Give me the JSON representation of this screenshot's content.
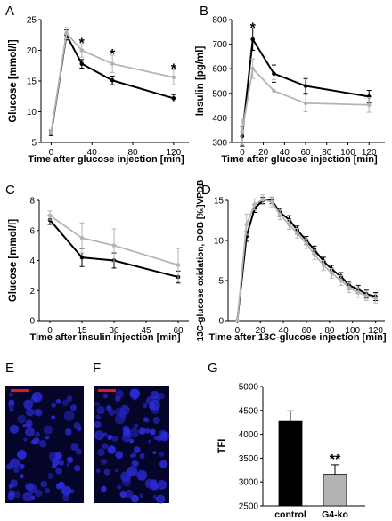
{
  "colors": {
    "black_series": "#000000",
    "gray_series": "#b4b4b4",
    "scale_bar": "#e0191c",
    "micro_bg": "#05052a",
    "micro_cell": "#2b2bd8"
  },
  "chart_data": [
    {
      "panel": "A",
      "type": "line",
      "xlabel": "Time after glucose injection [min]",
      "ylabel": "Glucose [mmol/l]",
      "xlim": [
        -10,
        135
      ],
      "ylim": [
        5,
        25
      ],
      "xticks": [
        0,
        40,
        80,
        120
      ],
      "yticks": [
        5,
        10,
        15,
        20,
        25
      ],
      "series": [
        {
          "color_key": "black_series",
          "x": [
            0,
            15,
            30,
            60,
            120
          ],
          "y": [
            6.5,
            22.5,
            17.8,
            15.1,
            12.2
          ],
          "err": [
            0.4,
            0.8,
            0.7,
            0.7,
            0.6
          ]
        },
        {
          "color_key": "gray_series",
          "x": [
            0,
            15,
            30,
            60,
            120
          ],
          "y": [
            6.7,
            22.8,
            20.0,
            17.8,
            15.6
          ],
          "err": [
            0.4,
            0.9,
            1.1,
            1.4,
            1.2
          ]
        }
      ],
      "annotations": [
        {
          "text": "*",
          "x": 30,
          "y": 21.3
        },
        {
          "text": "*",
          "x": 60,
          "y": 19.5
        },
        {
          "text": "*",
          "x": 120,
          "y": 17.1
        }
      ]
    },
    {
      "panel": "B",
      "type": "line",
      "xlabel": "Time after glucose injection [min]",
      "ylabel": "Insulin [pg/ml]",
      "xlim": [
        -10,
        135
      ],
      "ylim": [
        300,
        800
      ],
      "xticks": [
        0,
        20,
        40,
        60,
        80,
        100,
        120
      ],
      "yticks": [
        300,
        400,
        500,
        600,
        700,
        800
      ],
      "series": [
        {
          "color_key": "black_series",
          "x": [
            0,
            10,
            30,
            60,
            120
          ],
          "y": [
            325,
            720,
            580,
            530,
            487
          ],
          "err": [
            40,
            45,
            35,
            30,
            25
          ]
        },
        {
          "color_key": "gray_series",
          "x": [
            0,
            10,
            30,
            60,
            120
          ],
          "y": [
            345,
            600,
            510,
            460,
            453
          ],
          "err": [
            55,
            40,
            45,
            35,
            30
          ]
        }
      ],
      "annotations": [
        {
          "text": "*",
          "x": 10,
          "y": 770
        }
      ]
    },
    {
      "panel": "C",
      "type": "line",
      "xlabel": "Time after insulin injection [min]",
      "ylabel": "Glucose [mmol/l]",
      "xlim": [
        -5,
        65
      ],
      "ylim": [
        0,
        8
      ],
      "xticks": [
        0,
        15,
        30,
        45,
        60
      ],
      "yticks": [
        0,
        2,
        4,
        6,
        8
      ],
      "series": [
        {
          "color_key": "black_series",
          "x": [
            0,
            15,
            30,
            60
          ],
          "y": [
            6.7,
            4.2,
            4.0,
            2.9
          ],
          "err": [
            0.3,
            0.6,
            0.5,
            0.4
          ]
        },
        {
          "color_key": "gray_series",
          "x": [
            0,
            15,
            30,
            60
          ],
          "y": [
            7.0,
            5.5,
            5.0,
            3.7
          ],
          "err": [
            0.3,
            1.0,
            1.1,
            1.1
          ]
        }
      ]
    },
    {
      "panel": "D",
      "type": "line",
      "xlabel": "Time after 13C-glucose injection [min]",
      "ylabel": "13C-glucose oxidation, DOB [‰]VPDB",
      "xlim": [
        -8,
        128
      ],
      "ylim": [
        0,
        15
      ],
      "xticks": [
        0,
        20,
        40,
        60,
        80,
        100,
        120
      ],
      "yticks": [
        0,
        5,
        10,
        15
      ],
      "series": [
        {
          "color_key": "black_series",
          "x": [
            0,
            8,
            15,
            22,
            30,
            37,
            45,
            52,
            60,
            67,
            75,
            82,
            90,
            97,
            105,
            112,
            120
          ],
          "y": [
            0,
            10.5,
            14.0,
            15.0,
            15.0,
            13.5,
            12.6,
            11.3,
            10.0,
            8.8,
            7.4,
            6.4,
            5.5,
            4.4,
            3.9,
            3.3,
            3.0
          ],
          "err": [
            0,
            0.6,
            0.5,
            0.4,
            0.4,
            0.5,
            0.5,
            0.5,
            0.5,
            0.5,
            0.5,
            0.5,
            0.5,
            0.5,
            0.5,
            0.5,
            0.5
          ]
        },
        {
          "color_key": "gray_series",
          "x": [
            0,
            8,
            15,
            22,
            30,
            37,
            45,
            52,
            60,
            67,
            75,
            82,
            90,
            97,
            105,
            112,
            120
          ],
          "y": [
            0,
            12.0,
            14.5,
            15.1,
            14.8,
            13.2,
            12.0,
            10.9,
            9.6,
            8.2,
            6.9,
            5.9,
            5.0,
            4.1,
            3.5,
            3.1,
            2.8
          ],
          "err": [
            0,
            1.3,
            0.7,
            0.6,
            0.6,
            0.6,
            0.6,
            0.6,
            0.6,
            0.6,
            0.6,
            0.6,
            0.6,
            0.6,
            0.6,
            0.6,
            0.6
          ]
        }
      ]
    },
    {
      "panel": "G",
      "type": "bar",
      "categories": [
        "control",
        "G4-ko"
      ],
      "values": [
        4270,
        3160
      ],
      "err": [
        220,
        200
      ],
      "bar_color_keys": [
        "black_series",
        "gray_series"
      ],
      "xlabel": "",
      "ylabel": "TFI",
      "ylim": [
        2500,
        5000
      ],
      "yticks": [
        2500,
        3000,
        3500,
        4000,
        4500,
        5000
      ],
      "annotations": [
        {
          "text": "**",
          "category": "G4-ko",
          "y": 3430
        }
      ]
    }
  ],
  "panels": {
    "A": "A",
    "B": "B",
    "C": "C",
    "D": "D",
    "E": "E",
    "F": "F",
    "G": "G"
  }
}
